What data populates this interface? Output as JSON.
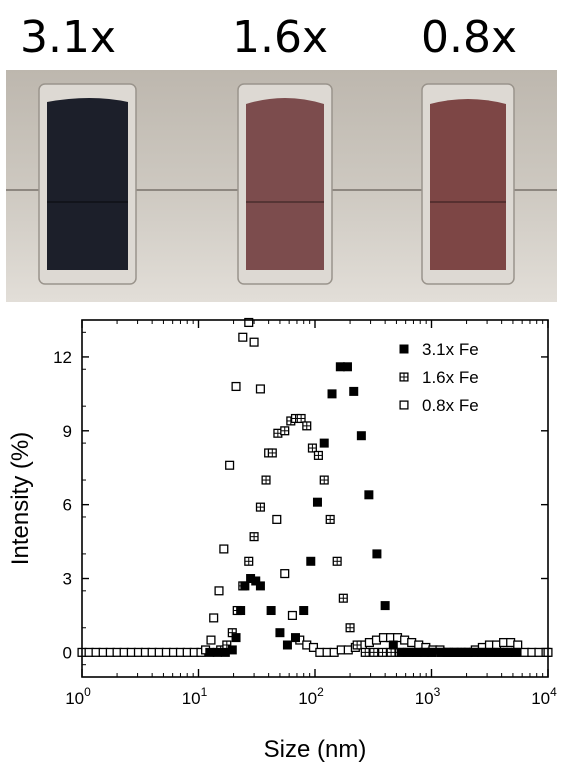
{
  "photo": {
    "labels": [
      "3.1x",
      "1.6x",
      "0.8x"
    ],
    "vial_colors": [
      "#1c1f2a",
      "#7c4c4d",
      "#7d4645"
    ],
    "background_color": "#c9c3bb"
  },
  "chart_data": {
    "type": "scatter",
    "xlabel": "Size (nm)",
    "ylabel": "Intensity (%)",
    "xscale": "log",
    "xlim": [
      1,
      10000
    ],
    "ylim": [
      -1,
      13.5
    ],
    "yticks": [
      0,
      3,
      6,
      9,
      12
    ],
    "xticks": [
      {
        "value": 1,
        "base": "10",
        "exp": "0"
      },
      {
        "value": 10,
        "base": "10",
        "exp": "1"
      },
      {
        "value": 100,
        "base": "10",
        "exp": "2"
      },
      {
        "value": 1000,
        "base": "10",
        "exp": "3"
      },
      {
        "value": 10000,
        "base": "10",
        "exp": "4"
      }
    ],
    "legend": "top-right",
    "series": [
      {
        "name": "3.1x Fe",
        "marker": "filled-square",
        "points": [
          [
            12.5,
            0
          ],
          [
            14.5,
            0
          ],
          [
            17,
            0
          ],
          [
            19.5,
            0.1
          ],
          [
            21,
            0.6
          ],
          [
            23,
            1.7
          ],
          [
            25,
            2.7
          ],
          [
            28,
            3.0
          ],
          [
            31,
            2.9
          ],
          [
            34,
            2.7
          ],
          [
            42,
            1.7
          ],
          [
            50,
            0.8
          ],
          [
            58,
            0.3
          ],
          [
            68,
            0.6
          ],
          [
            80,
            1.7
          ],
          [
            92,
            3.7
          ],
          [
            105,
            6.1
          ],
          [
            120,
            8.5
          ],
          [
            140,
            10.5
          ],
          [
            165,
            11.6
          ],
          [
            190,
            11.6
          ],
          [
            215,
            10.6
          ],
          [
            250,
            8.8
          ],
          [
            290,
            6.4
          ],
          [
            340,
            4.0
          ],
          [
            400,
            1.9
          ],
          [
            470,
            0.3
          ],
          [
            550,
            0
          ],
          [
            640,
            0
          ],
          [
            750,
            0
          ],
          [
            870,
            0
          ],
          [
            1000,
            0
          ],
          [
            1200,
            0
          ],
          [
            1400,
            0
          ],
          [
            1650,
            0
          ],
          [
            1950,
            0
          ],
          [
            2300,
            0
          ],
          [
            2700,
            0
          ],
          [
            3200,
            0
          ],
          [
            3800,
            0
          ],
          [
            4500,
            0
          ],
          [
            5300,
            0
          ]
        ]
      },
      {
        "name": "1.6x Fe",
        "marker": "grid-square",
        "points": [
          [
            15.5,
            0.1
          ],
          [
            17.5,
            0.3
          ],
          [
            19.5,
            0.8
          ],
          [
            21.5,
            1.7
          ],
          [
            24,
            2.7
          ],
          [
            27,
            3.7
          ],
          [
            30,
            4.7
          ],
          [
            34,
            5.9
          ],
          [
            38,
            7.0
          ],
          [
            43,
            8.1
          ],
          [
            48,
            8.9
          ],
          [
            55,
            9.0
          ],
          [
            62,
            9.4
          ],
          [
            68,
            9.5
          ],
          [
            76,
            9.5
          ],
          [
            85,
            9.2
          ],
          [
            95,
            8.3
          ],
          [
            107,
            8.0
          ],
          [
            120,
            7.0
          ],
          [
            135,
            5.4
          ],
          [
            155,
            3.7
          ],
          [
            175,
            2.2
          ],
          [
            200,
            1.0
          ],
          [
            230,
            0.3
          ],
          [
            270,
            0
          ],
          [
            320,
            0
          ],
          [
            380,
            0
          ],
          [
            450,
            0
          ],
          [
            530,
            0
          ],
          [
            620,
            0
          ],
          [
            740,
            0
          ],
          [
            870,
            0
          ],
          [
            1000,
            0
          ],
          [
            1200,
            0
          ],
          [
            1400,
            0
          ],
          [
            1650,
            0
          ],
          [
            1950,
            0
          ],
          [
            2300,
            0
          ],
          [
            2700,
            0
          ],
          [
            3200,
            0
          ],
          [
            3800,
            0
          ],
          [
            4500,
            0
          ],
          [
            5300,
            0
          ]
        ]
      },
      {
        "name": "0.8x Fe",
        "marker": "open-square",
        "points": [
          [
            1,
            0
          ],
          [
            1.15,
            0
          ],
          [
            1.32,
            0
          ],
          [
            1.52,
            0
          ],
          [
            1.75,
            0
          ],
          [
            2.0,
            0
          ],
          [
            2.3,
            0
          ],
          [
            2.65,
            0
          ],
          [
            3.05,
            0
          ],
          [
            3.5,
            0
          ],
          [
            4.0,
            0
          ],
          [
            4.6,
            0
          ],
          [
            5.3,
            0
          ],
          [
            6.1,
            0
          ],
          [
            7.0,
            0
          ],
          [
            8.0,
            0
          ],
          [
            9.2,
            0
          ],
          [
            10.5,
            0
          ],
          [
            11.5,
            0.1
          ],
          [
            12.8,
            0.5
          ],
          [
            13.5,
            1.4
          ],
          [
            15,
            2.5
          ],
          [
            16.5,
            4.2
          ],
          [
            18.5,
            7.6
          ],
          [
            21,
            10.8
          ],
          [
            24,
            12.8
          ],
          [
            27,
            13.4
          ],
          [
            30,
            12.6
          ],
          [
            34,
            10.7
          ],
          [
            40,
            8.1
          ],
          [
            47,
            5.4
          ],
          [
            55,
            3.2
          ],
          [
            64,
            1.5
          ],
          [
            74,
            0.5
          ],
          [
            85,
            0.3
          ],
          [
            97,
            0.2
          ],
          [
            110,
            0
          ],
          [
            127,
            0
          ],
          [
            146,
            0
          ],
          [
            168,
            0.1
          ],
          [
            193,
            0.1
          ],
          [
            222,
            0.2
          ],
          [
            255,
            0.3
          ],
          [
            293,
            0.4
          ],
          [
            337,
            0.5
          ],
          [
            387,
            0.6
          ],
          [
            445,
            0.6
          ],
          [
            511,
            0.6
          ],
          [
            588,
            0.5
          ],
          [
            676,
            0.4
          ],
          [
            777,
            0.3
          ],
          [
            894,
            0.2
          ],
          [
            1028,
            0.1
          ],
          [
            1182,
            0.1
          ],
          [
            1359,
            0
          ],
          [
            1563,
            0
          ],
          [
            1797,
            0
          ],
          [
            2067,
            0
          ],
          [
            2377,
            0.1
          ],
          [
            2733,
            0.2
          ],
          [
            3143,
            0.3
          ],
          [
            3615,
            0.3
          ],
          [
            4157,
            0.4
          ],
          [
            4780,
            0.4
          ],
          [
            5497,
            0.3
          ],
          [
            6322,
            0
          ],
          [
            7270,
            0
          ],
          [
            8360,
            0
          ],
          [
            9614,
            0
          ],
          [
            10000,
            0
          ]
        ]
      }
    ]
  }
}
